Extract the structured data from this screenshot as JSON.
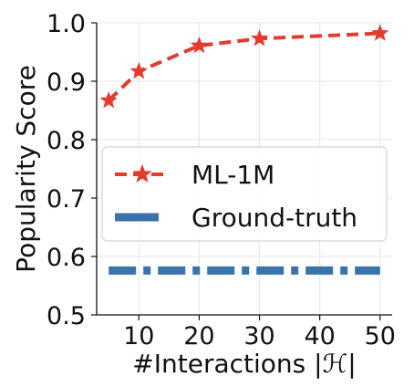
{
  "chart_data": {
    "type": "line",
    "xlabel": "#Interactions |ℋ|",
    "ylabel": "Popularity Score",
    "xlim": [
      3,
      52
    ],
    "ylim": [
      0.5,
      1.0
    ],
    "xticks": [
      10,
      20,
      30,
      40,
      50
    ],
    "yticks": [
      0.5,
      0.6,
      0.7,
      0.8,
      0.9,
      1.0
    ],
    "xtick_labels": [
      "10",
      "20",
      "30",
      "40",
      "50"
    ],
    "ytick_labels": [
      "0.5",
      "0.6",
      "0.7",
      "0.8",
      "0.9",
      "1.0"
    ],
    "grid": true,
    "legend_position": "center-left",
    "series": [
      {
        "name": "ML-1M",
        "color": "#e33b2e",
        "line_style": "dashed",
        "marker": "star",
        "x": [
          5,
          10,
          20,
          30,
          50
        ],
        "y": [
          0.867,
          0.917,
          0.961,
          0.973,
          0.982
        ]
      },
      {
        "name": "Ground-truth",
        "color": "#3a72aa",
        "line_style": "dash-dot",
        "marker": "none",
        "x": [
          5,
          50
        ],
        "y": [
          0.576,
          0.576
        ]
      }
    ]
  }
}
